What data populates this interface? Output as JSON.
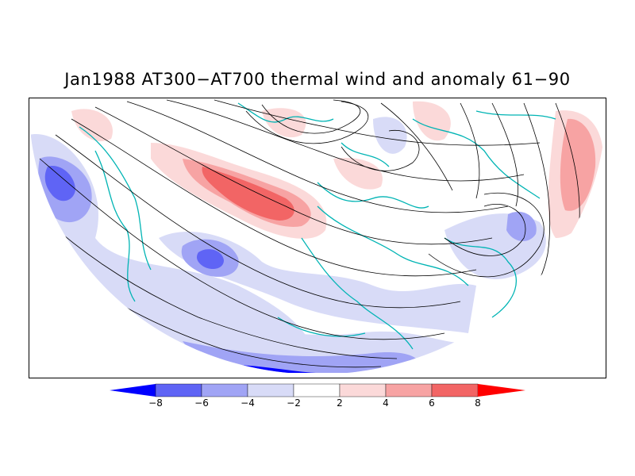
{
  "title": "Jan1988 AT300−AT700 thermal wind and anomaly 61−90",
  "legend": {
    "tick_labels": [
      "−8",
      "−6",
      "−4",
      "−2",
      "2",
      "4",
      "6",
      "8"
    ],
    "bins": [
      {
        "range": "<-8",
        "color": "#0000ff"
      },
      {
        "range": "-8..-6",
        "color": "#5f64f5"
      },
      {
        "range": "-6..-4",
        "color": "#a0a4f5"
      },
      {
        "range": "-4..-2",
        "color": "#d8dbf7"
      },
      {
        "range": "-2..2",
        "color": "#ffffff"
      },
      {
        "range": "2..4",
        "color": "#fbd9d9"
      },
      {
        "range": "4..6",
        "color": "#f7a3a3"
      },
      {
        "range": "6..8",
        "color": "#f26565"
      },
      {
        "range": ">8",
        "color": "#ff0000"
      }
    ]
  },
  "colors": {
    "coastline": "#00b4b4",
    "streamline": "#000000",
    "frame": "#000000"
  }
}
